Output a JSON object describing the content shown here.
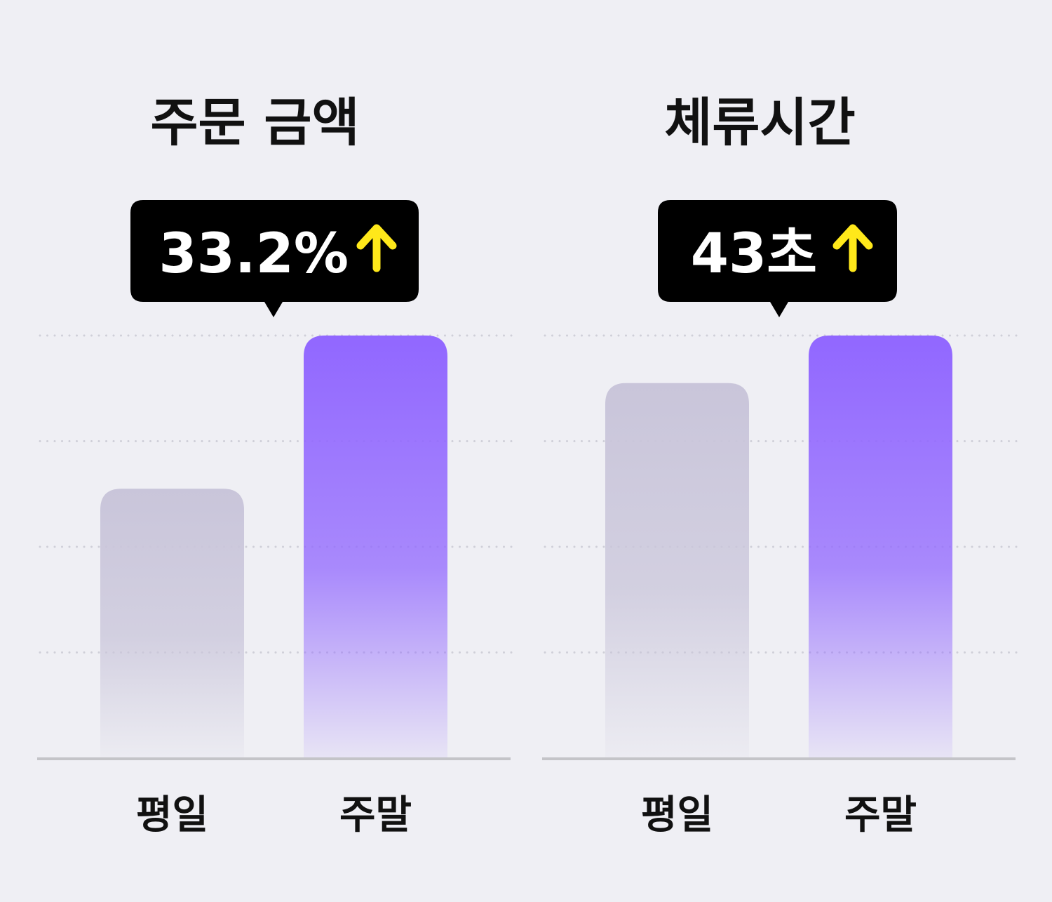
{
  "chart_data": [
    {
      "type": "bar",
      "title": "주문 금액",
      "annotation": "33.2%",
      "categories": [
        "평일",
        "주말"
      ],
      "values": [
        2.55,
        4
      ],
      "colors": [
        "#c9c5da",
        "#9167ff"
      ],
      "ylim": [
        0,
        4
      ],
      "yticks": [
        1,
        2,
        3,
        4
      ],
      "grid": true
    },
    {
      "type": "bar",
      "title": "체류시간",
      "annotation": "43초",
      "categories": [
        "평일",
        "주말"
      ],
      "values": [
        3.55,
        4
      ],
      "colors": [
        "#c9c5da",
        "#9167ff"
      ],
      "ylim": [
        0,
        4
      ],
      "yticks": [
        1,
        2,
        3,
        4
      ],
      "grid": true
    }
  ]
}
